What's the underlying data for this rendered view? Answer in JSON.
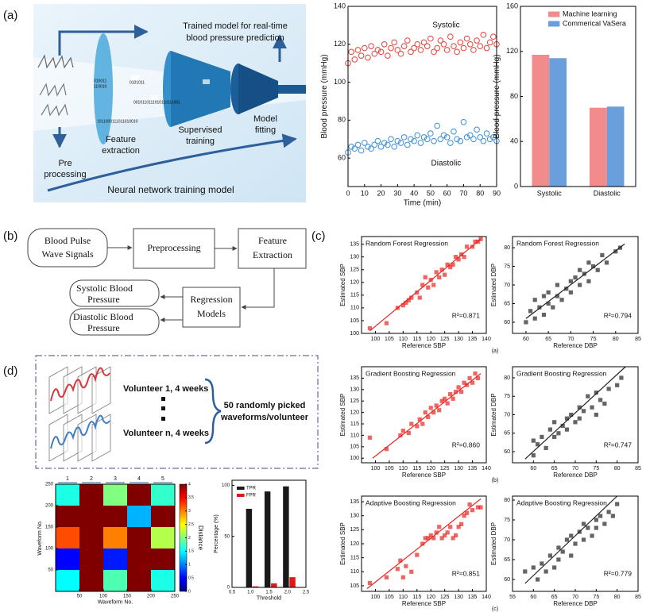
{
  "panel_labels": [
    "(a)",
    "(b)",
    "(c)",
    "(d)"
  ],
  "diagram_a": {
    "output_lines": [
      "Trained model for real-time",
      "blood pressure prediction"
    ],
    "preprocessing": [
      "Pre",
      "processing"
    ],
    "feature": [
      "Feature",
      "extraction"
    ],
    "supervised": [
      "Supervised",
      "training"
    ],
    "fitting": [
      "Model",
      "fitting"
    ],
    "bottom": "Neural network training model",
    "binary": [
      "010011",
      "110010",
      "0101011",
      "0010110111010110111001",
      "1011000111011010010"
    ]
  },
  "flowchart_b": {
    "input": [
      "Blood Pulse",
      "Wave Signals"
    ],
    "preprocessing": "Preprocessing",
    "feature": [
      "Feature",
      "Extraction"
    ],
    "regression": [
      "Regression",
      "Models"
    ],
    "systolic": [
      "Systolic Blood",
      "Pressure"
    ],
    "diastolic": [
      "Diastolic Blood",
      "Pressure"
    ]
  },
  "diagram_d": {
    "volunteer_1": "Volunteer 1, 4 weeks",
    "volunteer_n": "Volunteer n, 4 weeks",
    "summary": [
      "50 randomly picked",
      "waveforms/volunteer"
    ]
  },
  "chart_data": [
    {
      "type": "scatter",
      "marker": "circle-open",
      "xlabel": "Time (min)",
      "ylabel": "Blood pressure (mmHg)",
      "xlim": [
        0,
        90
      ],
      "xticks": [
        0,
        10,
        20,
        30,
        40,
        50,
        60,
        70,
        80,
        90
      ],
      "ylim": [
        45,
        140
      ],
      "yticks": [
        60,
        80,
        100,
        120,
        140
      ],
      "series": [
        {
          "name": "Systolic",
          "color": "#e8413c",
          "x": [
            0,
            2,
            4,
            6,
            8,
            10,
            12,
            14,
            16,
            18,
            20,
            22,
            24,
            26,
            28,
            30,
            32,
            34,
            36,
            38,
            40,
            42,
            44,
            46,
            48,
            50,
            52,
            54,
            56,
            58,
            60,
            62,
            64,
            66,
            68,
            70,
            72,
            74,
            76,
            78,
            80,
            82,
            84,
            86,
            88,
            90
          ],
          "y": [
            110,
            116,
            112,
            117,
            114,
            118,
            113,
            119,
            115,
            117,
            116,
            120,
            114,
            118,
            121,
            117,
            115,
            119,
            122,
            116,
            118,
            120,
            117,
            121,
            119,
            123,
            116,
            118,
            122,
            120,
            117,
            124,
            119,
            116,
            121,
            118,
            123,
            120,
            117,
            122,
            119,
            125,
            118,
            121,
            124,
            120
          ]
        },
        {
          "name": "Diastolic",
          "color": "#3a8fd8",
          "x": [
            0,
            2,
            4,
            6,
            8,
            10,
            12,
            14,
            16,
            18,
            20,
            22,
            24,
            26,
            28,
            30,
            32,
            34,
            36,
            38,
            40,
            42,
            44,
            46,
            48,
            50,
            52,
            54,
            56,
            58,
            60,
            62,
            64,
            66,
            68,
            70,
            72,
            74,
            76,
            78,
            80,
            82,
            84,
            86,
            88,
            90
          ],
          "y": [
            63,
            66,
            65,
            67,
            64,
            68,
            66,
            65,
            67,
            69,
            66,
            68,
            67,
            70,
            66,
            69,
            68,
            71,
            67,
            70,
            69,
            72,
            68,
            71,
            70,
            73,
            69,
            77,
            70,
            72,
            71,
            68,
            74,
            70,
            69,
            79,
            71,
            72,
            70,
            75,
            71,
            69,
            73,
            70,
            71,
            69
          ]
        }
      ]
    },
    {
      "type": "bar",
      "ylabel": "Blood pressure (mmHg)",
      "categories": [
        "Systolic",
        "Diastolic"
      ],
      "ylim": [
        0,
        160
      ],
      "yticks": [
        0,
        40,
        80,
        120,
        160
      ],
      "legend": "upper right",
      "series": [
        {
          "name": "Machine learning",
          "color": "#f28b8b",
          "values": [
            117,
            70
          ]
        },
        {
          "name": "Commerical VaSera",
          "color": "#6a9fdc",
          "values": [
            114,
            71
          ]
        }
      ]
    },
    {
      "type": "scatter",
      "marker": "square",
      "title": "Random Forest Regression",
      "xlabel": "Reference SBP",
      "ylabel": "Estimated SBP",
      "annotation": "R²=0.871",
      "xlim": [
        95,
        140
      ],
      "xticks": [
        100,
        105,
        110,
        115,
        120,
        125,
        130,
        135,
        140
      ],
      "ylim": [
        100,
        138
      ],
      "yticks": [
        100,
        105,
        110,
        115,
        120,
        125,
        130,
        135
      ],
      "series": [
        {
          "color": "#e8231f",
          "x": [
            98,
            104,
            108,
            110,
            111,
            112,
            113,
            115,
            116,
            117,
            118,
            119,
            120,
            121,
            122,
            123,
            124,
            125,
            126,
            127,
            128,
            129,
            130,
            131,
            132,
            133,
            135,
            136,
            137,
            138
          ],
          "y": [
            102,
            104,
            110,
            111,
            112,
            113,
            114,
            116,
            114,
            119,
            122,
            118,
            121,
            119,
            124,
            122,
            125,
            123,
            127,
            126,
            127,
            130,
            129,
            131,
            130,
            134,
            134,
            136,
            136,
            137
          ]
        }
      ],
      "fit_line": {
        "x": [
          98,
          138
        ],
        "y": [
          101,
          137
        ]
      }
    },
    {
      "type": "scatter",
      "marker": "square",
      "title": "Random Forest Regression",
      "xlabel": "Reference DBP",
      "ylabel": "Estimated DBP",
      "annotation": "R²=0.794",
      "caption": "(a)",
      "xlim": [
        57,
        85
      ],
      "xticks": [
        60,
        65,
        70,
        75,
        80,
        85
      ],
      "ylim": [
        57,
        83
      ],
      "yticks": [
        60,
        65,
        70,
        75,
        80
      ],
      "series": [
        {
          "color": "#222222",
          "x": [
            60,
            61,
            62,
            62,
            63,
            64,
            64,
            65,
            65,
            66,
            67,
            67,
            68,
            69,
            70,
            70,
            71,
            72,
            72,
            73,
            74,
            74,
            75,
            76,
            77,
            78,
            80,
            81
          ],
          "y": [
            60,
            63,
            61,
            66,
            64,
            62,
            67,
            65,
            68,
            64,
            67,
            70,
            66,
            69,
            71,
            68,
            72,
            70,
            74,
            73,
            71,
            76,
            75,
            74,
            78,
            76,
            79,
            80
          ]
        }
      ],
      "fit_line": {
        "x": [
          60,
          82
        ],
        "y": [
          61,
          81
        ]
      }
    },
    {
      "type": "scatter",
      "marker": "square",
      "title": "Gradient Boosting Regression",
      "xlabel": "Reference SBP",
      "ylabel": "Estimated SBP",
      "annotation": "R²=0.860",
      "xlim": [
        95,
        140
      ],
      "xticks": [
        100,
        105,
        110,
        115,
        120,
        125,
        130,
        135,
        140
      ],
      "ylim": [
        98,
        140
      ],
      "yticks": [
        100,
        105,
        110,
        115,
        120,
        125,
        130,
        135
      ],
      "series": [
        {
          "color": "#e8231f",
          "x": [
            98,
            104,
            109,
            110,
            112,
            113,
            115,
            116,
            117,
            118,
            119,
            120,
            121,
            122,
            123,
            124,
            125,
            126,
            127,
            128,
            129,
            130,
            131,
            132,
            133,
            134,
            135,
            136,
            137
          ],
          "y": [
            109,
            104,
            110,
            112,
            111,
            115,
            114,
            117,
            115,
            120,
            118,
            122,
            120,
            123,
            121,
            125,
            126,
            124,
            128,
            126,
            129,
            131,
            129,
            133,
            132,
            135,
            133,
            137,
            135
          ]
        }
      ],
      "fit_line": {
        "x": [
          99,
          138
        ],
        "y": [
          100,
          137
        ]
      }
    },
    {
      "type": "scatter",
      "marker": "square",
      "title": "Gradient Boosting Regression",
      "xlabel": "Reference DBP",
      "ylabel": "Estimated DBP",
      "annotation": "R²=0.747",
      "caption": "(b)",
      "xlim": [
        55,
        85
      ],
      "xticks": [
        60,
        65,
        70,
        75,
        80,
        85
      ],
      "ylim": [
        57,
        83
      ],
      "yticks": [
        60,
        65,
        70,
        75,
        80
      ],
      "series": [
        {
          "color": "#222222",
          "x": [
            60,
            60,
            61,
            62,
            63,
            64,
            65,
            65,
            66,
            67,
            68,
            68,
            69,
            70,
            71,
            71,
            72,
            73,
            74,
            75,
            75,
            76,
            77,
            78,
            80,
            81
          ],
          "y": [
            63,
            59,
            62,
            64,
            61,
            66,
            64,
            68,
            65,
            67,
            69,
            66,
            70,
            68,
            72,
            69,
            71,
            75,
            72,
            70,
            76,
            74,
            73,
            77,
            78,
            80
          ]
        }
      ],
      "fit_line": {
        "x": [
          58,
          82
        ],
        "y": [
          58,
          83
        ]
      }
    },
    {
      "type": "scatter",
      "marker": "square",
      "title": "Adaptive Boosting Regression",
      "xlabel": "Reference SBP",
      "ylabel": "Estimated SBP",
      "annotation": "R²=0.851",
      "xlim": [
        95,
        140
      ],
      "xticks": [
        100,
        105,
        110,
        115,
        120,
        125,
        130,
        135,
        140
      ],
      "ylim": [
        103,
        137
      ],
      "yticks": [
        105,
        110,
        115,
        120,
        125,
        130,
        135
      ],
      "series": [
        {
          "color": "#e8231f",
          "x": [
            98,
            104,
            108,
            109,
            110,
            111,
            113,
            115,
            117,
            118,
            119,
            120,
            121,
            122,
            123,
            124,
            125,
            126,
            127,
            128,
            129,
            130,
            131,
            132,
            133,
            134,
            135,
            137,
            138
          ],
          "y": [
            106,
            108,
            111,
            114,
            108,
            112,
            110,
            116,
            120,
            122,
            122,
            123,
            122,
            124,
            126,
            122,
            123,
            124,
            126,
            122,
            123,
            126,
            127,
            130,
            131,
            134,
            132,
            133,
            133
          ]
        }
      ],
      "fit_line": {
        "x": [
          97,
          138
        ],
        "y": [
          104,
          136
        ]
      }
    },
    {
      "type": "scatter",
      "marker": "square",
      "title": "Adaptive Boosting Regression",
      "xlabel": "Reference DBP",
      "ylabel": "Estimated DBP",
      "annotation": "R²=0.779",
      "caption": "(c)",
      "xlim": [
        55,
        85
      ],
      "xticks": [
        55,
        60,
        65,
        70,
        75,
        80,
        85
      ],
      "ylim": [
        57,
        81
      ],
      "yticks": [
        60,
        65,
        70,
        75,
        80
      ],
      "series": [
        {
          "color": "#222222",
          "x": [
            58,
            60,
            61,
            62,
            63,
            64,
            65,
            66,
            66,
            67,
            68,
            69,
            69,
            70,
            71,
            72,
            72,
            73,
            74,
            75,
            75,
            76,
            77,
            78,
            79,
            80
          ],
          "y": [
            62,
            63,
            60,
            64,
            62,
            66,
            63,
            68,
            65,
            67,
            70,
            66,
            71,
            69,
            72,
            70,
            74,
            73,
            71,
            75,
            73,
            76,
            74,
            77,
            76,
            79
          ]
        }
      ],
      "fit_line": {
        "x": [
          58,
          80
        ],
        "y": [
          59,
          81
        ]
      }
    },
    {
      "type": "heatmap",
      "xlabel": "Waveform No.",
      "ylabel": "Waveform No.",
      "colorbar_label": "Distance",
      "group_labels": [
        "1",
        "2",
        "3",
        "4",
        "5"
      ],
      "xlim": [
        0,
        250
      ],
      "xticks": [
        50,
        100,
        150,
        200,
        250
      ],
      "ylim": [
        0,
        250
      ],
      "yticks": [
        50,
        100,
        150,
        200,
        250
      ],
      "zlim": [
        0,
        4
      ],
      "colorbar_ticks": [
        0,
        0.5,
        1,
        1.5,
        2,
        2.5,
        3,
        3.5,
        4
      ],
      "z": [
        [
          1.5,
          4,
          1.8,
          4,
          1.6
        ],
        [
          0.5,
          4,
          0.6,
          4,
          4
        ],
        [
          3.2,
          4,
          3.0,
          4,
          2.2
        ],
        [
          4,
          4,
          4,
          1.2,
          4
        ],
        [
          1.6,
          4,
          2.0,
          4,
          1.7
        ]
      ]
    },
    {
      "type": "bar",
      "xlabel": "Threshold",
      "ylabel": "Percentage (%)",
      "legend": "upper left",
      "x": [
        1,
        1.5,
        2
      ],
      "xlim": [
        0.5,
        2.5
      ],
      "xticks": [
        0.5,
        {
          "value": 1,
          "label": "1.0"
        },
        1.5,
        {
          "value": 2,
          "label": "2.0"
        },
        2.5
      ],
      "ylim": [
        0,
        105
      ],
      "yticks": [
        0,
        50,
        100
      ],
      "series": [
        {
          "name": "TPR",
          "color": "#1a1a1a",
          "values": [
            77,
            94,
            99
          ]
        },
        {
          "name": "FPR",
          "color": "#e01818",
          "values": [
            1,
            4,
            10
          ]
        }
      ]
    }
  ]
}
